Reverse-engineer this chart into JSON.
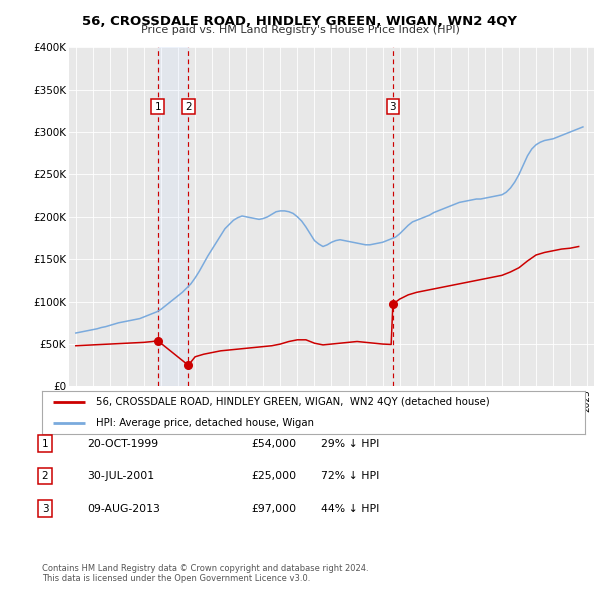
{
  "title": "56, CROSSDALE ROAD, HINDLEY GREEN, WIGAN, WN2 4QY",
  "subtitle": "Price paid vs. HM Land Registry's House Price Index (HPI)",
  "background_color": "#ffffff",
  "plot_bg_color": "#e8e8e8",
  "ylim": [
    0,
    400000
  ],
  "yticks": [
    0,
    50000,
    100000,
    150000,
    200000,
    250000,
    300000,
    350000,
    400000
  ],
  "ytick_labels": [
    "£0",
    "£50K",
    "£100K",
    "£150K",
    "£200K",
    "£250K",
    "£300K",
    "£350K",
    "£400K"
  ],
  "xlim_start": 1994.6,
  "xlim_end": 2025.4,
  "sale_color": "#cc0000",
  "hpi_color": "#7aaadd",
  "sale_label": "56, CROSSDALE ROAD, HINDLEY GREEN, WIGAN,  WN2 4QY (detached house)",
  "hpi_label": "HPI: Average price, detached house, Wigan",
  "transactions": [
    {
      "num": 1,
      "date_label": "20-OCT-1999",
      "year": 1999.8,
      "price": 54000,
      "pct": "29%",
      "marker_y": 54000
    },
    {
      "num": 2,
      "date_label": "30-JUL-2001",
      "year": 2001.6,
      "price": 25000,
      "pct": "72%",
      "marker_y": 25000
    },
    {
      "num": 3,
      "date_label": "09-AUG-2013",
      "year": 2013.6,
      "price": 97000,
      "pct": "44%",
      "marker_y": 97000
    }
  ],
  "vspan_x1": 1999.8,
  "vspan_x2": 2001.6,
  "footer_line1": "Contains HM Land Registry data © Crown copyright and database right 2024.",
  "footer_line2": "This data is licensed under the Open Government Licence v3.0.",
  "hpi_data_x": [
    1995,
    1995.25,
    1995.5,
    1995.75,
    1996,
    1996.25,
    1996.5,
    1996.75,
    1997,
    1997.25,
    1997.5,
    1997.75,
    1998,
    1998.25,
    1998.5,
    1998.75,
    1999,
    1999.25,
    1999.5,
    1999.75,
    2000,
    2000.25,
    2000.5,
    2000.75,
    2001,
    2001.25,
    2001.5,
    2001.75,
    2002,
    2002.25,
    2002.5,
    2002.75,
    2003,
    2003.25,
    2003.5,
    2003.75,
    2004,
    2004.25,
    2004.5,
    2004.75,
    2005,
    2005.25,
    2005.5,
    2005.75,
    2006,
    2006.25,
    2006.5,
    2006.75,
    2007,
    2007.25,
    2007.5,
    2007.75,
    2008,
    2008.25,
    2008.5,
    2008.75,
    2009,
    2009.25,
    2009.5,
    2009.75,
    2010,
    2010.25,
    2010.5,
    2010.75,
    2011,
    2011.25,
    2011.5,
    2011.75,
    2012,
    2012.25,
    2012.5,
    2012.75,
    2013,
    2013.25,
    2013.5,
    2013.75,
    2014,
    2014.25,
    2014.5,
    2014.75,
    2015,
    2015.25,
    2015.5,
    2015.75,
    2016,
    2016.25,
    2016.5,
    2016.75,
    2017,
    2017.25,
    2017.5,
    2017.75,
    2018,
    2018.25,
    2018.5,
    2018.75,
    2019,
    2019.25,
    2019.5,
    2019.75,
    2020,
    2020.25,
    2020.5,
    2020.75,
    2021,
    2021.25,
    2021.5,
    2021.75,
    2022,
    2022.25,
    2022.5,
    2022.75,
    2023,
    2023.25,
    2023.5,
    2023.75,
    2024,
    2024.25,
    2024.5,
    2024.75
  ],
  "hpi_data_y": [
    63000,
    64000,
    65000,
    66000,
    67000,
    68000,
    69500,
    70500,
    72000,
    73500,
    75000,
    76000,
    77000,
    78000,
    79000,
    80000,
    82000,
    84000,
    86000,
    88000,
    91000,
    95000,
    99000,
    103000,
    107000,
    111000,
    116000,
    121000,
    128000,
    136000,
    145000,
    154000,
    162000,
    170000,
    178000,
    186000,
    191000,
    196000,
    199000,
    201000,
    200000,
    199000,
    198000,
    197000,
    198000,
    200000,
    203000,
    206000,
    207000,
    207000,
    206000,
    204000,
    200000,
    195000,
    188000,
    180000,
    172000,
    168000,
    165000,
    167000,
    170000,
    172000,
    173000,
    172000,
    171000,
    170000,
    169000,
    168000,
    167000,
    167000,
    168000,
    169000,
    170000,
    172000,
    174000,
    176000,
    180000,
    185000,
    190000,
    194000,
    196000,
    198000,
    200000,
    202000,
    205000,
    207000,
    209000,
    211000,
    213000,
    215000,
    217000,
    218000,
    219000,
    220000,
    221000,
    221000,
    222000,
    223000,
    224000,
    225000,
    226000,
    229000,
    234000,
    241000,
    250000,
    261000,
    272000,
    280000,
    285000,
    288000,
    290000,
    291000,
    292000,
    294000,
    296000,
    298000,
    300000,
    302000,
    304000,
    306000
  ],
  "sale_data_x": [
    1995,
    1995.5,
    1996,
    1996.5,
    1997,
    1997.5,
    1998,
    1998.5,
    1999,
    1999.5,
    1999.8,
    2001.6,
    2002,
    2002.5,
    2003,
    2003.5,
    2004,
    2004.5,
    2005,
    2005.5,
    2006,
    2006.5,
    2007,
    2007.5,
    2008,
    2008.5,
    2009,
    2009.5,
    2010,
    2010.5,
    2011,
    2011.5,
    2012,
    2012.5,
    2013,
    2013.5,
    2013.6,
    2014,
    2014.5,
    2015,
    2015.5,
    2016,
    2016.5,
    2017,
    2017.5,
    2018,
    2018.5,
    2019,
    2019.5,
    2020,
    2020.5,
    2021,
    2021.5,
    2022,
    2022.5,
    2023,
    2023.5,
    2024,
    2024.5
  ],
  "sale_data_y": [
    48000,
    48500,
    49000,
    49500,
    50000,
    50500,
    51000,
    51500,
    52000,
    53000,
    54000,
    25000,
    35000,
    38000,
    40000,
    42000,
    43000,
    44000,
    45000,
    46000,
    47000,
    48000,
    50000,
    53000,
    55000,
    55000,
    51000,
    49000,
    50000,
    51000,
    52000,
    53000,
    52000,
    51000,
    50000,
    49500,
    97000,
    103000,
    108000,
    111000,
    113000,
    115000,
    117000,
    119000,
    121000,
    123000,
    125000,
    127000,
    129000,
    131000,
    135000,
    140000,
    148000,
    155000,
    158000,
    160000,
    162000,
    163000,
    165000
  ]
}
